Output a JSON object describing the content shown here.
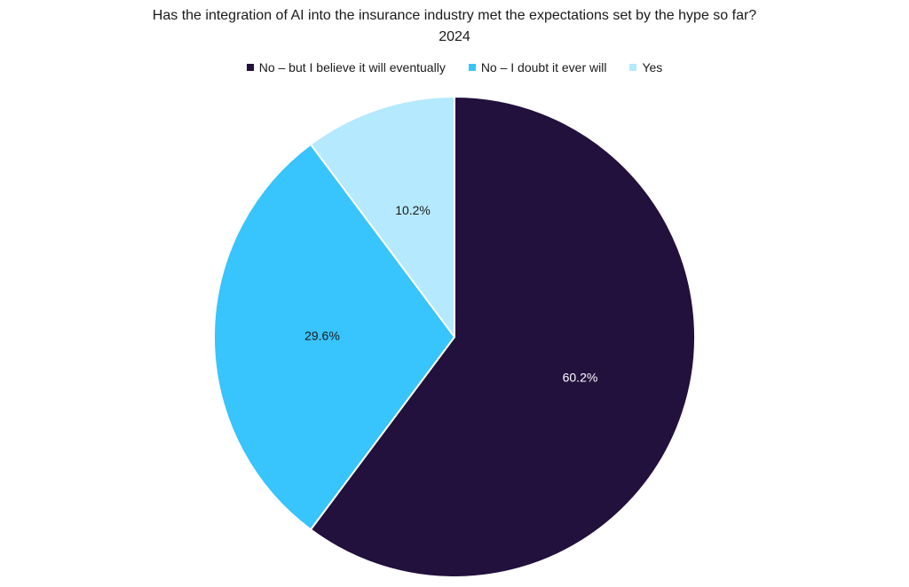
{
  "chart_data": {
    "type": "pie",
    "title": "Has the integration of AI into the insurance industry met the expectations set by the hype so far?",
    "subtitle": "2024",
    "legend_position": "top",
    "start_angle_deg": 0,
    "direction": "clockwise",
    "slices": [
      {
        "name": "No – but I believe it will eventually",
        "value": 60.2,
        "label": "60.2%",
        "color": "#22103d",
        "label_color": "#ffffff"
      },
      {
        "name": "No – I doubt it ever will",
        "value": 29.6,
        "label": "29.6%",
        "color": "#38c4fc",
        "label_color": "#1a1a1a"
      },
      {
        "name": "Yes",
        "value": 10.2,
        "label": "10.2%",
        "color": "#b5e9fd",
        "label_color": "#1a1a1a"
      }
    ]
  }
}
